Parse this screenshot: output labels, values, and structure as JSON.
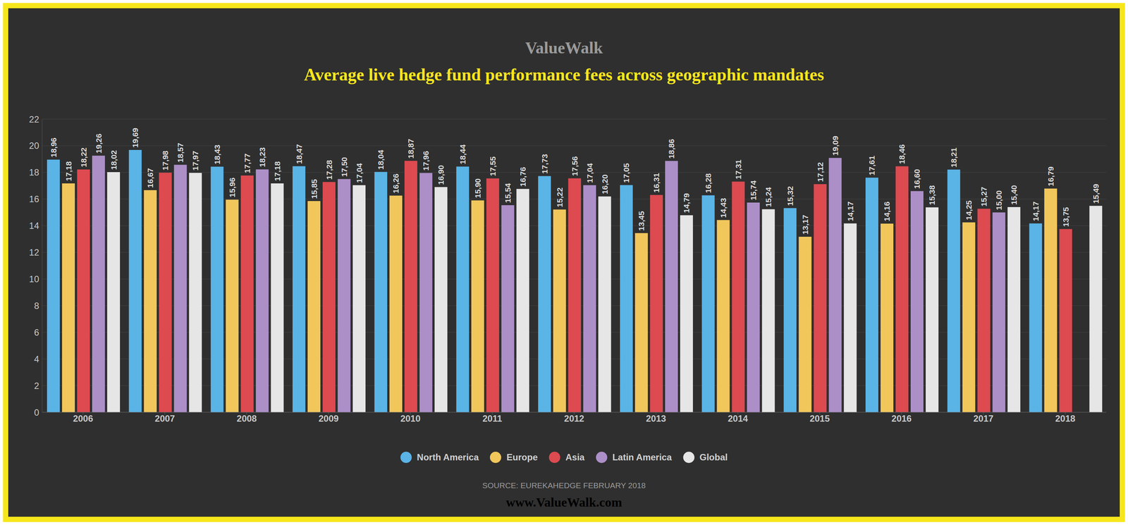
{
  "chart_data": {
    "type": "bar",
    "title": "Average live hedge fund performance fees across geographic mandates",
    "annotations": [
      "ValueWalk",
      "SOURCE: EUREKAHEDGE FEBRUARY 2018",
      "www.ValueWalk.com"
    ],
    "categories": [
      "2006",
      "2007",
      "2008",
      "2009",
      "2010",
      "2011",
      "2012",
      "2013",
      "2014",
      "2015",
      "2016",
      "2017",
      "2018"
    ],
    "series": [
      {
        "name": "North America",
        "color": "#5ab4e6",
        "values": [
          18.96,
          19.69,
          18.43,
          18.47,
          18.04,
          18.44,
          17.73,
          17.05,
          16.28,
          15.32,
          17.61,
          18.21,
          14.17
        ],
        "value_labels": [
          "18,96",
          "19,69",
          "18,43",
          "18,47",
          "18,04",
          "18,44",
          "17,73",
          "17,05",
          "16,28",
          "15,32",
          "17,61",
          "18,21",
          "14,17"
        ]
      },
      {
        "name": "Europe",
        "color": "#f1c75c",
        "values": [
          17.18,
          16.67,
          15.96,
          15.85,
          16.26,
          15.9,
          15.22,
          13.45,
          14.43,
          13.17,
          14.16,
          14.25,
          16.79
        ],
        "value_labels": [
          "17,18",
          "16,67",
          "15,96",
          "15,85",
          "16,26",
          "15,90",
          "15,22",
          "13,45",
          "14,43",
          "13,17",
          "14,16",
          "14,25",
          "16,79"
        ]
      },
      {
        "name": "Asia",
        "color": "#dd4a50",
        "values": [
          18.22,
          17.98,
          17.77,
          17.28,
          18.87,
          17.55,
          17.56,
          16.31,
          17.31,
          17.12,
          18.46,
          15.27,
          13.75
        ],
        "value_labels": [
          "18,22",
          "17,98",
          "17,77",
          "17,28",
          "18,87",
          "17,55",
          "17,56",
          "16,31",
          "17,31",
          "17,12",
          "18,46",
          "15,27",
          "13,75"
        ]
      },
      {
        "name": "Latin America",
        "color": "#ad8fc8",
        "values": [
          19.26,
          18.57,
          18.23,
          17.5,
          17.96,
          15.54,
          17.04,
          18.86,
          15.74,
          19.09,
          16.6,
          15.0,
          null
        ],
        "value_labels": [
          "19,26",
          "18,57",
          "18,23",
          "17,50",
          "17,96",
          "15,54",
          "17,04",
          "18,86",
          "15,74",
          "19,09",
          "16,60",
          "15,00",
          null
        ]
      },
      {
        "name": "Global",
        "color": "#e6e6e6",
        "values": [
          18.02,
          17.97,
          17.18,
          17.04,
          16.9,
          16.76,
          16.2,
          14.79,
          15.24,
          14.17,
          15.38,
          15.4,
          15.49
        ],
        "value_labels": [
          "18,02",
          "17,97",
          "17,18",
          "17,04",
          "16,90",
          "16,76",
          "16,20",
          "14,79",
          "15,24",
          "14,17",
          "15,38",
          "15,40",
          "15,49"
        ]
      }
    ],
    "ylim": [
      0,
      22
    ],
    "yticks": [
      0,
      2,
      4,
      6,
      8,
      10,
      12,
      14,
      16,
      18,
      20,
      22
    ],
    "grid": true,
    "data_labels": true,
    "legend": "bottom"
  }
}
